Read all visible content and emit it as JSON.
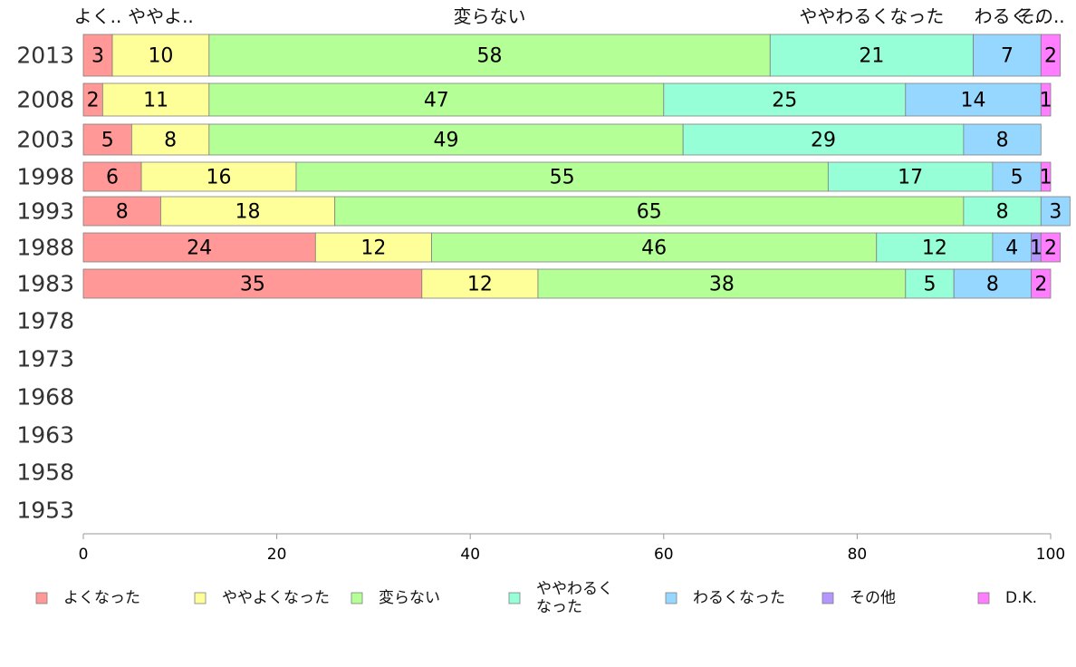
{
  "chart_data": {
    "type": "bar",
    "orientation": "horizontal",
    "stacked": true,
    "categories": [
      "2013",
      "2008",
      "2003",
      "1998",
      "1993",
      "1988",
      "1983",
      "1978",
      "1973",
      "1968",
      "1963",
      "1958",
      "1953"
    ],
    "series": [
      {
        "name": "よくなった",
        "header": "よく..",
        "color": "#ff9896",
        "values": [
          3,
          2,
          5,
          6,
          8,
          24,
          35,
          null,
          null,
          null,
          null,
          null,
          null
        ]
      },
      {
        "name": "ややよくなった",
        "header": "ややよ..",
        "color": "#ffff99",
        "values": [
          10,
          11,
          8,
          16,
          18,
          12,
          12,
          null,
          null,
          null,
          null,
          null,
          null
        ]
      },
      {
        "name": "変らない",
        "header": "変らない",
        "color": "#b4ff96",
        "values": [
          58,
          47,
          49,
          55,
          65,
          46,
          38,
          null,
          null,
          null,
          null,
          null,
          null
        ]
      },
      {
        "name": "ややわるくなった",
        "legend_lines": [
          "ややわるく",
          "なった"
        ],
        "header": "ややわるくなった",
        "color": "#96ffd7",
        "values": [
          21,
          25,
          29,
          17,
          8,
          12,
          5,
          null,
          null,
          null,
          null,
          null,
          null
        ]
      },
      {
        "name": "わるくなった",
        "header": "わるく..",
        "color": "#96d7ff",
        "values": [
          7,
          14,
          8,
          5,
          3,
          4,
          8,
          null,
          null,
          null,
          null,
          null,
          null
        ]
      },
      {
        "name": "その他",
        "header": "その..",
        "color": "#b496ff",
        "values": [
          0,
          0,
          0,
          0,
          0,
          1,
          0,
          null,
          null,
          null,
          null,
          null,
          null
        ]
      },
      {
        "name": "D.K.",
        "header": "",
        "color": "#ff7dff",
        "values": [
          2,
          1,
          0,
          1,
          0,
          2,
          2,
          null,
          null,
          null,
          null,
          null,
          null
        ]
      }
    ],
    "xlim": [
      0,
      100
    ],
    "xticks": [
      0,
      20,
      40,
      60,
      80,
      100
    ],
    "grid": false,
    "legend_position": "bottom"
  }
}
